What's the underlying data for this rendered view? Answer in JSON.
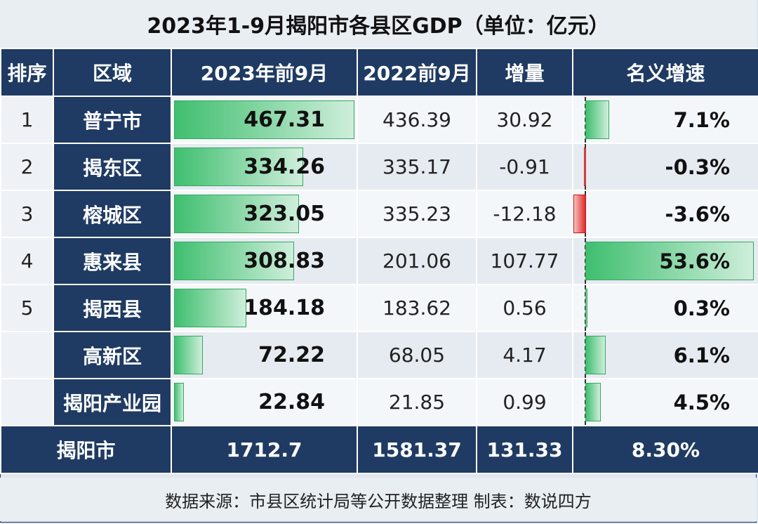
{
  "title": "2023年1-9月揭阳市各县区GDP（单位：亿元）",
  "headers": {
    "rank": "排序",
    "region": "区域",
    "gdp_2023": "2023年前9月",
    "gdp_2022": "2022前9月",
    "increase": "增量",
    "growth": "名义增速"
  },
  "rows": [
    {
      "rank": "1",
      "region": "普宁市",
      "gdp_2023": "467.31",
      "gdp_2022": "436.39",
      "increase": "30.92",
      "growth": "7.1%"
    },
    {
      "rank": "2",
      "region": "揭东区",
      "gdp_2023": "334.26",
      "gdp_2022": "335.17",
      "increase": "-0.91",
      "growth": "-0.3%"
    },
    {
      "rank": "3",
      "region": "榕城区",
      "gdp_2023": "323.05",
      "gdp_2022": "335.23",
      "increase": "-12.18",
      "growth": "-3.6%"
    },
    {
      "rank": "4",
      "region": "惠来县",
      "gdp_2023": "308.83",
      "gdp_2022": "201.06",
      "increase": "107.77",
      "growth": "53.6%"
    },
    {
      "rank": "5",
      "region": "揭西县",
      "gdp_2023": "184.18",
      "gdp_2022": "183.62",
      "increase": "0.56",
      "growth": "0.3%"
    },
    {
      "rank": "",
      "region": "高新区",
      "gdp_2023": "72.22",
      "gdp_2022": "68.05",
      "increase": "4.17",
      "growth": "6.1%"
    },
    {
      "rank": "",
      "region": "揭阳产业园",
      "gdp_2023": "22.84",
      "gdp_2022": "21.85",
      "increase": "0.99",
      "growth": "4.5%"
    }
  ],
  "total": {
    "label": "揭阳市",
    "gdp_2023": "1712.7",
    "gdp_2022": "1581.37",
    "increase": "131.33",
    "growth": "8.30%"
  },
  "source": "数据来源：市县区统计局等公开数据整理    制表：数说四方",
  "watermark": "数说四方",
  "colors": {
    "header_bg": "#1f3b63",
    "bar_positive": "#3fbf6f",
    "bar_negative": "#e02a2a"
  },
  "chart_data": {
    "type": "table",
    "title": "2023年1-9月揭阳市各县区GDP（单位：亿元）",
    "columns": [
      "排序",
      "区域",
      "2023年前9月",
      "2022前9月",
      "增量",
      "名义增速"
    ],
    "categories": [
      "普宁市",
      "揭东区",
      "榕城区",
      "惠来县",
      "揭西县",
      "高新区",
      "揭阳产业园"
    ],
    "series": [
      {
        "name": "2023年前9月",
        "values": [
          467.31,
          334.26,
          323.05,
          308.83,
          184.18,
          72.22,
          22.84
        ]
      },
      {
        "name": "2022前9月",
        "values": [
          436.39,
          335.17,
          335.23,
          201.06,
          183.62,
          68.05,
          21.85
        ]
      },
      {
        "name": "增量",
        "values": [
          30.92,
          -0.91,
          -12.18,
          107.77,
          0.56,
          4.17,
          0.99
        ]
      },
      {
        "name": "名义增速",
        "values": [
          7.1,
          -0.3,
          -3.6,
          53.6,
          0.3,
          6.1,
          4.5
        ]
      }
    ],
    "totals": {
      "region": "揭阳市",
      "gdp_2023": 1712.7,
      "gdp_2022": 1581.37,
      "increase": 131.33,
      "growth": 8.3
    }
  }
}
